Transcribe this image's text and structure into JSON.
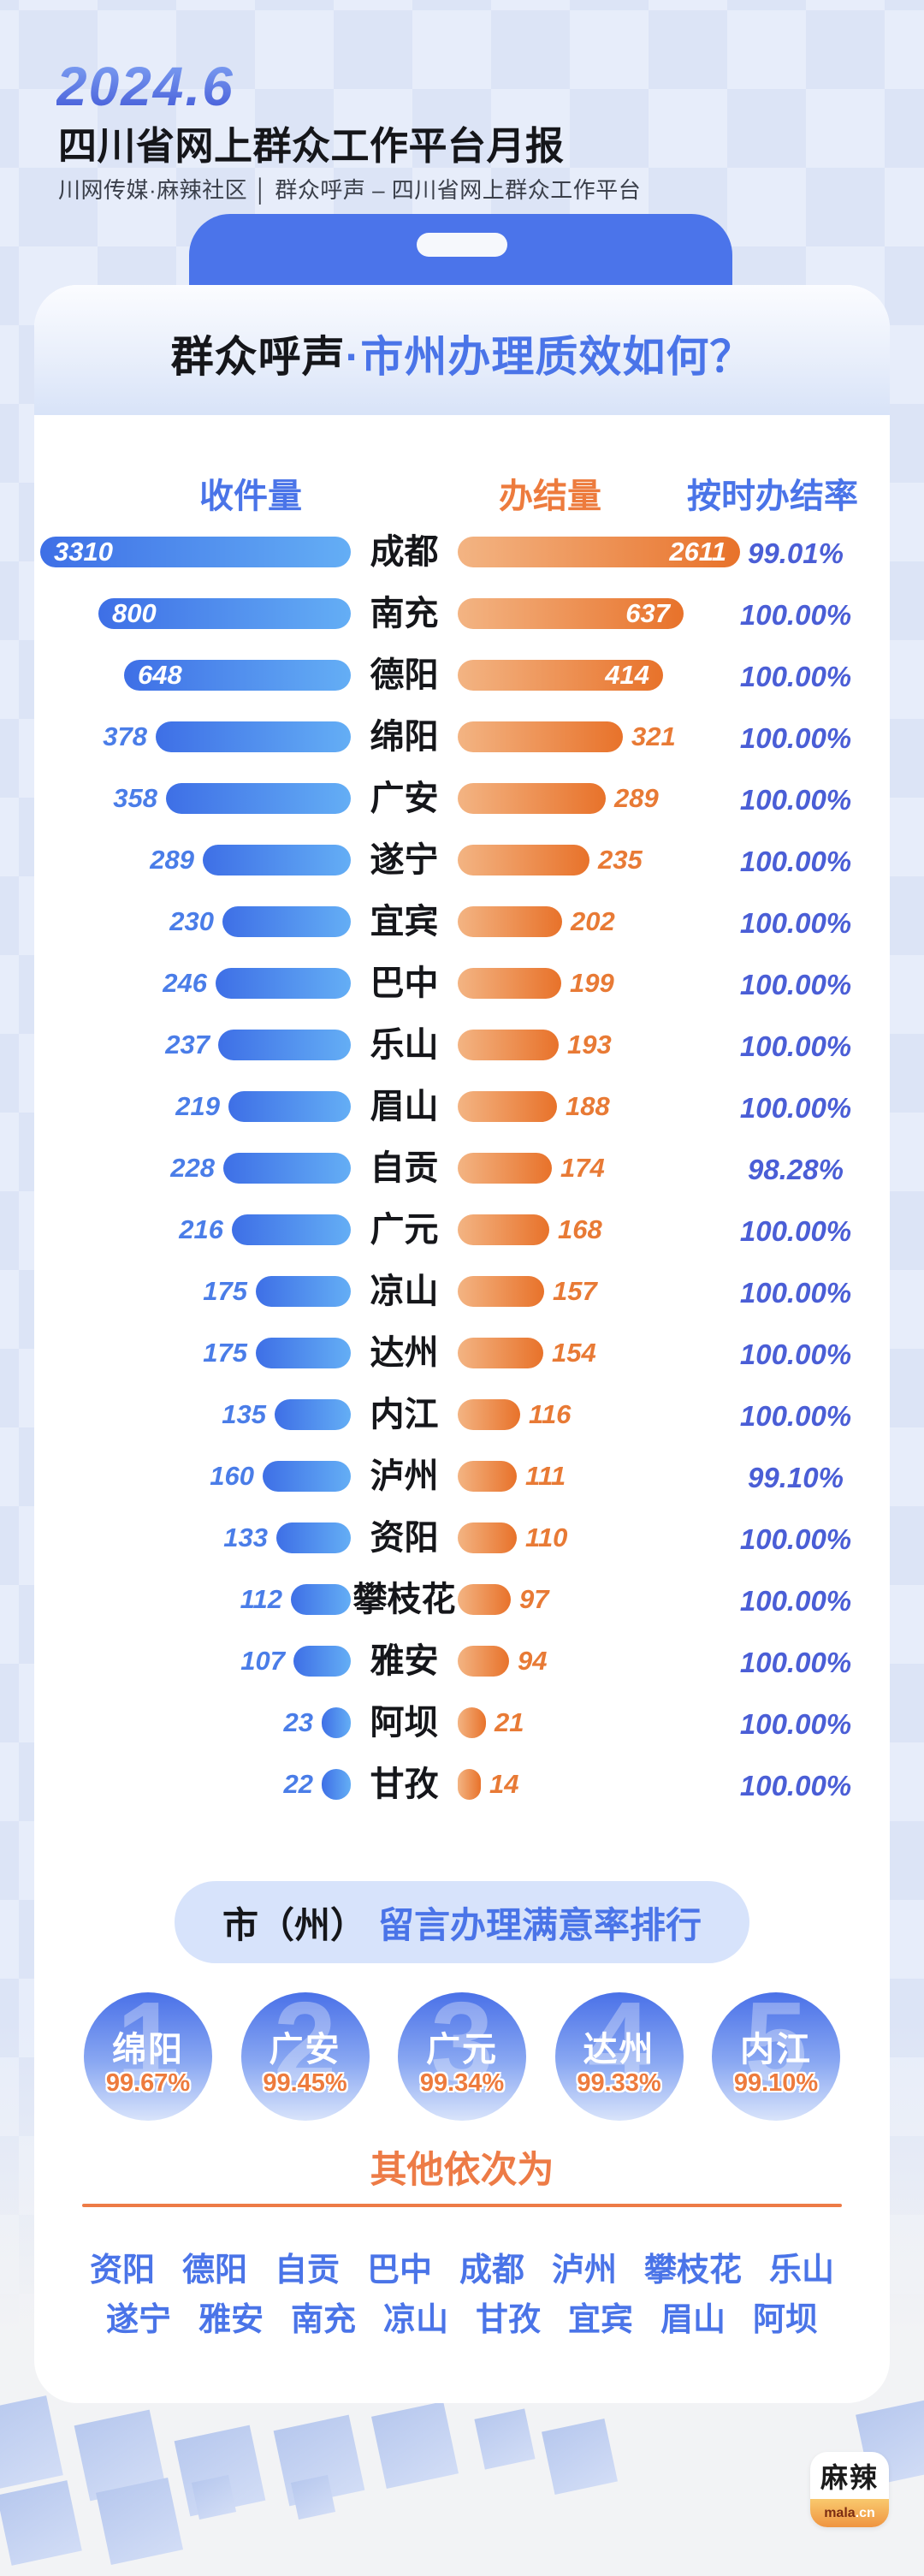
{
  "header": {
    "date": "2024.6",
    "title": "四川省网上群众工作平台月报",
    "subtitle": "川网传媒·麻辣社区 │ 群众呼声 – 四川省网上群众工作平台"
  },
  "card": {
    "title_black": "群众呼声",
    "title_blue": "·市州办理质效如何？"
  },
  "chart_data": {
    "type": "bar",
    "title": "群众呼声·市州办理质效如何？",
    "columns": {
      "received": "收件量",
      "completed": "办结量",
      "rate": "按时办结率"
    },
    "legend_position": "top",
    "rows": [
      {
        "city": "成都",
        "received": 3310,
        "completed": 2611,
        "rate": "99.01%"
      },
      {
        "city": "南充",
        "received": 800,
        "completed": 637,
        "rate": "100.00%"
      },
      {
        "city": "德阳",
        "received": 648,
        "completed": 414,
        "rate": "100.00%"
      },
      {
        "city": "绵阳",
        "received": 378,
        "completed": 321,
        "rate": "100.00%"
      },
      {
        "city": "广安",
        "received": 358,
        "completed": 289,
        "rate": "100.00%"
      },
      {
        "city": "遂宁",
        "received": 289,
        "completed": 235,
        "rate": "100.00%"
      },
      {
        "city": "宜宾",
        "received": 230,
        "completed": 202,
        "rate": "100.00%"
      },
      {
        "city": "巴中",
        "received": 246,
        "completed": 199,
        "rate": "100.00%"
      },
      {
        "city": "乐山",
        "received": 237,
        "completed": 193,
        "rate": "100.00%"
      },
      {
        "city": "眉山",
        "received": 219,
        "completed": 188,
        "rate": "100.00%"
      },
      {
        "city": "自贡",
        "received": 228,
        "completed": 174,
        "rate": "98.28%"
      },
      {
        "city": "广元",
        "received": 216,
        "completed": 168,
        "rate": "100.00%"
      },
      {
        "city": "凉山",
        "received": 175,
        "completed": 157,
        "rate": "100.00%"
      },
      {
        "city": "达州",
        "received": 175,
        "completed": 154,
        "rate": "100.00%"
      },
      {
        "city": "内江",
        "received": 135,
        "completed": 116,
        "rate": "100.00%"
      },
      {
        "city": "泸州",
        "received": 160,
        "completed": 111,
        "rate": "99.10%"
      },
      {
        "city": "资阳",
        "received": 133,
        "completed": 110,
        "rate": "100.00%"
      },
      {
        "city": "攀枝花",
        "received": 112,
        "completed": 97,
        "rate": "100.00%"
      },
      {
        "city": "雅安",
        "received": 107,
        "completed": 94,
        "rate": "100.00%"
      },
      {
        "city": "阿坝",
        "received": 23,
        "completed": 21,
        "rate": "100.00%"
      },
      {
        "city": "甘孜",
        "received": 22,
        "completed": 14,
        "rate": "100.00%"
      }
    ]
  },
  "ranking": {
    "title_black": "市（州）",
    "title_blue": "留言办理满意率排行",
    "top5": [
      {
        "rank": 1,
        "city": "绵阳",
        "rate": "99.67%"
      },
      {
        "rank": 2,
        "city": "广安",
        "rate": "99.45%"
      },
      {
        "rank": 3,
        "city": "广元",
        "rate": "99.34%"
      },
      {
        "rank": 4,
        "city": "达州",
        "rate": "99.33%"
      },
      {
        "rank": 5,
        "city": "内江",
        "rate": "99.10%"
      }
    ],
    "others_label": "其他依次为",
    "others_rows": [
      [
        "资阳",
        "德阳",
        "自贡",
        "巴中",
        "成都",
        "泸州",
        "攀枝花",
        "乐山"
      ],
      [
        "遂宁",
        "雅安",
        "南充",
        "凉山",
        "甘孜",
        "宜宾",
        "眉山",
        "阿坝"
      ]
    ]
  },
  "footer": {
    "logo_main": "麻辣",
    "logo_mala": "mala",
    "logo_cn": ".cn"
  },
  "colors": {
    "accent_blue": "#4a74e8",
    "accent_orange": "#ed7b3d",
    "bar_blue": [
      "#3e6fe6",
      "#64aef5"
    ],
    "bar_orange": [
      "#f3b483",
      "#e8722a"
    ],
    "rate_text": "#4a5ed6",
    "bg_top": "#dce4f6",
    "bg_bottom": "#f2f3f5"
  }
}
